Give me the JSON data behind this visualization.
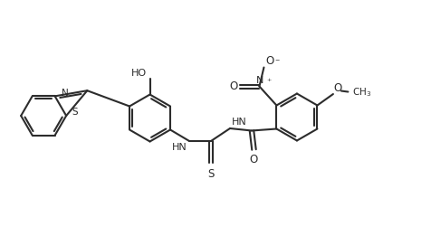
{
  "bg_color": "#ffffff",
  "line_color": "#2c2c2c",
  "line_width": 1.5,
  "figsize": [
    4.76,
    2.61
  ],
  "dpi": 100,
  "xlim": [
    0,
    9.5
  ],
  "ylim": [
    0,
    5.0
  ]
}
